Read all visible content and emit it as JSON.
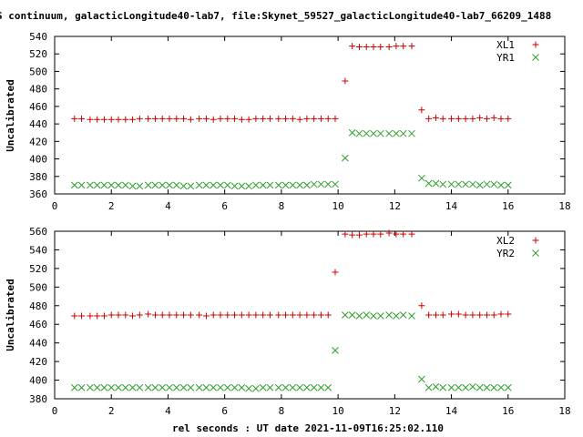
{
  "chart_data": {
    "title": "S continuum, galacticLongitude40-lab7, file:Skynet_59527_galacticLongitude40-lab7_66209_1488",
    "xlabel": "rel seconds : UT date 2021-11-09T16:25:02.110",
    "panels": [
      {
        "type": "scatter",
        "ylabel": "Uncalibrated",
        "xlim": [
          0,
          18
        ],
        "ylim": [
          360,
          540
        ],
        "xticks": [
          "0",
          "2",
          "4",
          "6",
          "8",
          "10",
          "12",
          "14",
          "16",
          "18"
        ],
        "yticks": [
          "360",
          "380",
          "400",
          "420",
          "440",
          "460",
          "480",
          "500",
          "520",
          "540"
        ],
        "series": [
          {
            "name": "XL1",
            "marker": "plus",
            "color": "#cc0000",
            "x": [
              0.7,
              0.95,
              1.25,
              1.5,
              1.75,
              2.0,
              2.25,
              2.5,
              2.75,
              3.0,
              3.3,
              3.55,
              3.8,
              4.05,
              4.3,
              4.55,
              4.8,
              5.1,
              5.35,
              5.6,
              5.85,
              6.1,
              6.35,
              6.6,
              6.85,
              7.1,
              7.35,
              7.6,
              7.9,
              8.15,
              8.4,
              8.65,
              8.9,
              9.15,
              9.4,
              9.65,
              9.9,
              10.25,
              10.5,
              10.75,
              11.0,
              11.25,
              11.5,
              11.8,
              12.05,
              12.3,
              12.6,
              12.95,
              13.2,
              13.45,
              13.7,
              14.0,
              14.25,
              14.5,
              14.75,
              15.0,
              15.25,
              15.5,
              15.75,
              16.0
            ],
            "y": [
              446,
              446,
              445,
              445,
              445,
              445,
              445,
              445,
              445,
              446,
              446,
              446,
              446,
              446,
              446,
              446,
              445,
              446,
              446,
              445,
              446,
              446,
              446,
              445,
              445,
              446,
              446,
              446,
              446,
              446,
              446,
              445,
              446,
              446,
              446,
              446,
              446,
              489,
              529,
              528,
              528,
              528,
              528,
              528,
              529,
              529,
              529,
              456,
              446,
              447,
              446,
              446,
              446,
              446,
              446,
              447,
              446,
              447,
              446,
              446
            ]
          },
          {
            "name": "YR1",
            "marker": "x",
            "color": "#2e9e2e",
            "x": [
              0.7,
              0.95,
              1.25,
              1.5,
              1.75,
              2.0,
              2.25,
              2.5,
              2.75,
              3.0,
              3.3,
              3.55,
              3.8,
              4.05,
              4.3,
              4.55,
              4.8,
              5.1,
              5.35,
              5.6,
              5.85,
              6.1,
              6.35,
              6.6,
              6.85,
              7.1,
              7.35,
              7.6,
              7.9,
              8.15,
              8.4,
              8.65,
              8.9,
              9.15,
              9.4,
              9.65,
              9.9,
              10.25,
              10.5,
              10.75,
              11.0,
              11.25,
              11.5,
              11.8,
              12.05,
              12.3,
              12.6,
              12.95,
              13.2,
              13.45,
              13.7,
              14.0,
              14.25,
              14.5,
              14.75,
              15.0,
              15.25,
              15.5,
              15.75,
              16.0
            ],
            "y": [
              370,
              370,
              370,
              370,
              370,
              370,
              370,
              370,
              369,
              369,
              370,
              370,
              370,
              370,
              370,
              369,
              369,
              370,
              370,
              370,
              370,
              370,
              369,
              369,
              369,
              370,
              370,
              370,
              370,
              370,
              370,
              370,
              370,
              371,
              371,
              371,
              371,
              401,
              430,
              429,
              429,
              429,
              429,
              429,
              429,
              429,
              429,
              378,
              372,
              372,
              371,
              371,
              371,
              371,
              371,
              370,
              371,
              371,
              370,
              370
            ]
          }
        ]
      },
      {
        "type": "scatter",
        "ylabel": "Uncalibrated",
        "xlim": [
          0,
          18
        ],
        "ylim": [
          380,
          560
        ],
        "xticks": [
          "0",
          "2",
          "4",
          "6",
          "8",
          "10",
          "12",
          "14",
          "16",
          "18"
        ],
        "yticks": [
          "380",
          "400",
          "420",
          "440",
          "460",
          "480",
          "500",
          "520",
          "540",
          "560"
        ],
        "series": [
          {
            "name": "XL2",
            "marker": "plus",
            "color": "#cc0000",
            "x": [
              0.7,
              0.95,
              1.25,
              1.5,
              1.75,
              2.0,
              2.25,
              2.5,
              2.75,
              3.0,
              3.3,
              3.55,
              3.8,
              4.05,
              4.3,
              4.55,
              4.8,
              5.1,
              5.35,
              5.6,
              5.85,
              6.1,
              6.35,
              6.6,
              6.85,
              7.1,
              7.35,
              7.6,
              7.9,
              8.15,
              8.4,
              8.65,
              8.9,
              9.15,
              9.4,
              9.65,
              9.9,
              10.25,
              10.5,
              10.75,
              11.0,
              11.25,
              11.5,
              11.8,
              12.05,
              12.3,
              12.6,
              12.95,
              13.2,
              13.45,
              13.7,
              14.0,
              14.25,
              14.5,
              14.75,
              15.0,
              15.25,
              15.5,
              15.75,
              16.0
            ],
            "y": [
              469,
              469,
              469,
              469,
              469,
              470,
              470,
              470,
              469,
              470,
              471,
              470,
              470,
              470,
              470,
              470,
              470,
              470,
              469,
              470,
              470,
              470,
              470,
              470,
              470,
              470,
              470,
              470,
              470,
              470,
              470,
              470,
              470,
              470,
              470,
              470,
              516,
              557,
              556,
              556,
              557,
              557,
              557,
              558,
              557,
              557,
              557,
              480,
              470,
              470,
              470,
              471,
              471,
              470,
              470,
              470,
              470,
              470,
              471,
              471
            ]
          },
          {
            "name": "YR2",
            "marker": "x",
            "color": "#2e9e2e",
            "x": [
              0.7,
              0.95,
              1.25,
              1.5,
              1.75,
              2.0,
              2.25,
              2.5,
              2.75,
              3.0,
              3.3,
              3.55,
              3.8,
              4.05,
              4.3,
              4.55,
              4.8,
              5.1,
              5.35,
              5.6,
              5.85,
              6.1,
              6.35,
              6.6,
              6.85,
              7.1,
              7.35,
              7.6,
              7.9,
              8.15,
              8.4,
              8.65,
              8.9,
              9.15,
              9.4,
              9.65,
              9.9,
              10.25,
              10.5,
              10.75,
              11.0,
              11.25,
              11.5,
              11.8,
              12.05,
              12.3,
              12.6,
              12.95,
              13.2,
              13.45,
              13.7,
              14.0,
              14.25,
              14.5,
              14.75,
              15.0,
              15.25,
              15.5,
              15.75,
              16.0
            ],
            "y": [
              392,
              392,
              392,
              392,
              392,
              392,
              392,
              392,
              392,
              392,
              392,
              392,
              392,
              392,
              392,
              392,
              392,
              392,
              392,
              392,
              392,
              392,
              392,
              392,
              391,
              391,
              392,
              392,
              392,
              392,
              392,
              392,
              392,
              392,
              392,
              392,
              432,
              470,
              470,
              469,
              470,
              469,
              469,
              470,
              469,
              470,
              469,
              401,
              392,
              393,
              392,
              392,
              392,
              392,
              393,
              392,
              392,
              392,
              392,
              392
            ]
          }
        ]
      }
    ]
  }
}
